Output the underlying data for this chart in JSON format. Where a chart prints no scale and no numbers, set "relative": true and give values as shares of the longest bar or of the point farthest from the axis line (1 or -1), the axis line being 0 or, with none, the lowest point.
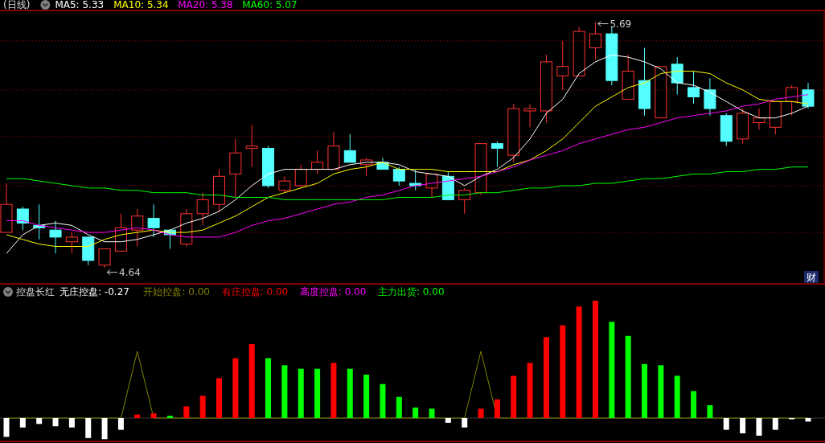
{
  "chart_data": [
    {
      "type": "candlestick",
      "title": "(日线)",
      "categories": [
        null,
        null,
        null,
        null,
        null,
        null,
        null,
        null,
        null,
        null,
        null,
        null,
        null,
        null,
        null,
        null,
        null,
        null,
        null,
        null,
        null,
        null,
        null,
        null,
        null,
        null,
        null,
        null,
        null,
        null,
        null,
        null,
        null,
        null,
        null,
        null,
        null,
        null,
        null,
        null,
        null,
        null,
        null,
        null,
        null,
        null,
        null,
        null,
        null,
        null
      ],
      "ohlc": [
        [
          4.79,
          5.0,
          4.79,
          4.91
        ],
        [
          4.89,
          4.9,
          4.8,
          4.83
        ],
        [
          4.82,
          4.91,
          4.76,
          4.81
        ],
        [
          4.8,
          4.84,
          4.7,
          4.77
        ],
        [
          4.75,
          4.79,
          4.7,
          4.77
        ],
        [
          4.77,
          4.77,
          4.65,
          4.67
        ],
        [
          4.65,
          4.72,
          4.64,
          4.72
        ],
        [
          4.71,
          4.87,
          4.71,
          4.81
        ],
        [
          4.8,
          4.89,
          4.73,
          4.86
        ],
        [
          4.85,
          4.91,
          4.77,
          4.81
        ],
        [
          4.8,
          4.8,
          4.72,
          4.78
        ],
        [
          4.74,
          4.89,
          4.73,
          4.87
        ],
        [
          4.87,
          4.96,
          4.82,
          4.93
        ],
        [
          4.91,
          5.06,
          4.88,
          5.03
        ],
        [
          5.04,
          5.19,
          4.94,
          5.13
        ],
        [
          5.15,
          5.25,
          5.07,
          5.16
        ],
        [
          5.15,
          5.16,
          4.98,
          4.99
        ],
        [
          4.97,
          5.03,
          4.96,
          5.01
        ],
        [
          4.99,
          5.08,
          4.98,
          5.06
        ],
        [
          5.06,
          5.14,
          5.04,
          5.09
        ],
        [
          5.06,
          5.22,
          5.06,
          5.16
        ],
        [
          5.14,
          5.21,
          5.09,
          5.09
        ],
        [
          5.08,
          5.11,
          5.03,
          5.1
        ],
        [
          5.09,
          5.11,
          5.06,
          5.06
        ],
        [
          5.06,
          5.07,
          4.99,
          5.01
        ],
        [
          5.0,
          5.06,
          4.97,
          4.99
        ],
        [
          4.98,
          5.04,
          4.94,
          5.04
        ],
        [
          5.03,
          5.05,
          4.93,
          4.93
        ],
        [
          4.93,
          4.98,
          4.87,
          4.97
        ],
        [
          4.96,
          5.17,
          4.95,
          5.17
        ],
        [
          5.17,
          5.18,
          5.07,
          5.15
        ],
        [
          5.12,
          5.34,
          5.09,
          5.32
        ],
        [
          5.31,
          5.34,
          5.24,
          5.32
        ],
        [
          5.31,
          5.55,
          5.26,
          5.52
        ],
        [
          5.46,
          5.61,
          5.4,
          5.5
        ],
        [
          5.46,
          5.67,
          5.46,
          5.65
        ],
        [
          5.58,
          5.69,
          5.53,
          5.64
        ],
        [
          5.64,
          5.67,
          5.42,
          5.44
        ],
        [
          5.36,
          5.55,
          5.36,
          5.48
        ],
        [
          5.44,
          5.58,
          5.29,
          5.32
        ],
        [
          5.28,
          5.5,
          5.28,
          5.5
        ],
        [
          5.51,
          5.54,
          5.38,
          5.43
        ],
        [
          5.41,
          5.48,
          5.34,
          5.37
        ],
        [
          5.4,
          5.45,
          5.29,
          5.32
        ],
        [
          5.29,
          5.3,
          5.16,
          5.18
        ],
        [
          5.19,
          5.32,
          5.17,
          5.3
        ],
        [
          5.26,
          5.32,
          5.23,
          5.28
        ],
        [
          5.24,
          5.35,
          5.21,
          5.35
        ],
        [
          5.35,
          5.42,
          5.29,
          5.41
        ],
        [
          5.4,
          5.43,
          5.32,
          5.33
        ]
      ],
      "colors": [
        "#ff3232",
        "#54ffff",
        "#54ffff",
        "#54ffff",
        "#ff3232",
        "#54ffff",
        "#ff3232",
        "#ff3232",
        "#ff3232",
        "#54ffff",
        "#54ffff",
        "#ff3232",
        "#ff3232",
        "#ff3232",
        "#ff3232",
        "#ff3232",
        "#54ffff",
        "#ff3232",
        "#ff3232",
        "#ff3232",
        "#ff3232",
        "#54ffff",
        "#ff3232",
        "#54ffff",
        "#54ffff",
        "#54ffff",
        "#ff3232",
        "#54ffff",
        "#ff3232",
        "#ff3232",
        "#54ffff",
        "#ff3232",
        "#ff3232",
        "#ff3232",
        "#ff3232",
        "#ff3232",
        "#ff3232",
        "#54ffff",
        "#ff3232",
        "#54ffff",
        "#ff3232",
        "#54ffff",
        "#54ffff",
        "#54ffff",
        "#54ffff",
        "#ff3232",
        "#ff3232",
        "#ff3232",
        "#ff3232",
        "#54ffff"
      ],
      "series": [
        {
          "name": "MA5: 5.33",
          "type": "line",
          "color": "#ffffff",
          "values": [
            4.7,
            4.78,
            4.82,
            4.83,
            4.82,
            4.78,
            4.75,
            4.75,
            4.76,
            4.78,
            4.8,
            4.83,
            4.85,
            4.88,
            4.93,
            4.99,
            5.04,
            5.06,
            5.06,
            5.06,
            5.06,
            5.08,
            5.09,
            5.09,
            5.08,
            5.05,
            5.04,
            5.03,
            4.99,
            5.03,
            5.06,
            5.11,
            5.19,
            5.3,
            5.36,
            5.47,
            5.52,
            5.55,
            5.54,
            5.52,
            5.49,
            5.43,
            5.42,
            5.39,
            5.35,
            5.31,
            5.28,
            5.28,
            5.3,
            5.33
          ]
        },
        {
          "name": "MA10: 5.34",
          "type": "line",
          "color": "#ffff00",
          "values": [
            4.78,
            4.76,
            4.74,
            4.73,
            4.73,
            4.73,
            4.76,
            4.78,
            4.79,
            4.8,
            4.79,
            4.79,
            4.8,
            4.83,
            4.86,
            4.9,
            4.94,
            4.96,
            4.98,
            5.0,
            5.04,
            5.06,
            5.07,
            5.09,
            5.06,
            5.06,
            5.06,
            5.05,
            5.05,
            5.05,
            5.05,
            5.08,
            5.1,
            5.14,
            5.19,
            5.26,
            5.33,
            5.37,
            5.41,
            5.43,
            5.47,
            5.48,
            5.48,
            5.47,
            5.43,
            5.4,
            5.36,
            5.35,
            5.35,
            5.34
          ]
        },
        {
          "name": "MA20: 5.38",
          "type": "line",
          "color": "#ff00ff",
          "values": [
            4.84,
            4.84,
            4.82,
            4.81,
            4.8,
            4.79,
            4.79,
            4.8,
            4.81,
            4.8,
            4.78,
            4.77,
            4.77,
            4.77,
            4.79,
            4.82,
            4.84,
            4.85,
            4.87,
            4.89,
            4.91,
            4.92,
            4.94,
            4.95,
            4.97,
            4.99,
            5.0,
            5.01,
            5.02,
            5.03,
            5.05,
            5.07,
            5.1,
            5.12,
            5.14,
            5.17,
            5.19,
            5.21,
            5.23,
            5.24,
            5.26,
            5.28,
            5.29,
            5.3,
            5.31,
            5.33,
            5.34,
            5.36,
            5.37,
            5.38
          ]
        },
        {
          "name": "MA60: 5.07",
          "type": "line",
          "color": "#00ff00",
          "values": [
            5.02,
            5.02,
            5.01,
            5.0,
            4.99,
            4.98,
            4.98,
            4.97,
            4.97,
            4.96,
            4.96,
            4.96,
            4.95,
            4.95,
            4.94,
            4.94,
            4.94,
            4.93,
            4.93,
            4.93,
            4.93,
            4.93,
            4.93,
            4.93,
            4.94,
            4.94,
            4.94,
            4.95,
            4.95,
            4.96,
            4.96,
            4.97,
            4.98,
            4.98,
            4.99,
            4.99,
            5.0,
            5.0,
            5.01,
            5.02,
            5.02,
            5.03,
            5.04,
            5.04,
            5.05,
            5.05,
            5.06,
            5.06,
            5.07,
            5.07
          ]
        }
      ],
      "ylim": [
        4.57,
        5.74
      ],
      "yticks": [
        {
          "value": 5.61,
          "label": null
        },
        {
          "value": 5.4,
          "label": null
        },
        {
          "value": 5.2,
          "label": null
        },
        {
          "value": 4.99,
          "label": null
        },
        {
          "value": 4.79,
          "label": null
        }
      ],
      "grid": "y",
      "legend": "top left",
      "annotations": [
        "5.69",
        "4.64",
        "财"
      ]
    },
    {
      "type": "bar",
      "title": "控盘长红",
      "relative": true,
      "categories": [
        null,
        null,
        null,
        null,
        null,
        null,
        null,
        null,
        null,
        null,
        null,
        null,
        null,
        null,
        null,
        null,
        null,
        null,
        null,
        null,
        null,
        null,
        null,
        null,
        null,
        null,
        null,
        null,
        null,
        null,
        null,
        null,
        null,
        null,
        null,
        null,
        null,
        null,
        null,
        null,
        null,
        null,
        null,
        null,
        null,
        null,
        null,
        null,
        null,
        null
      ],
      "values": [
        -0.16,
        -0.08,
        -0.05,
        -0.07,
        -0.08,
        -0.17,
        -0.18,
        -0.1,
        0.03,
        0.04,
        0.02,
        0.1,
        0.19,
        0.34,
        0.51,
        0.63,
        0.51,
        0.45,
        0.42,
        0.42,
        0.47,
        0.42,
        0.37,
        0.29,
        0.18,
        0.09,
        0.08,
        -0.04,
        -0.08,
        0.08,
        0.16,
        0.36,
        0.47,
        0.69,
        0.79,
        0.95,
        1,
        0.82,
        0.7,
        0.46,
        0.45,
        0.36,
        0.23,
        0.11,
        -0.1,
        -0.13,
        -0.15,
        -0.1,
        -0.01,
        -0.03
      ],
      "colors": [
        "#ffffff",
        "#ffffff",
        "#ffffff",
        "#ffffff",
        "#ffffff",
        "#ffffff",
        "#ffffff",
        "#ffffff",
        "#ff0000",
        "#ff0000",
        "#00ff00",
        "#ff0000",
        "#ff0000",
        "#ff0000",
        "#ff0000",
        "#ff0000",
        "#00ff00",
        "#00ff00",
        "#00ff00",
        "#00ff00",
        "#ff0000",
        "#00ff00",
        "#00ff00",
        "#00ff00",
        "#00ff00",
        "#00ff00",
        "#00ff00",
        "#ffffff",
        "#ffffff",
        "#ff0000",
        "#ff0000",
        "#ff0000",
        "#ff0000",
        "#ff0000",
        "#ff0000",
        "#ff0000",
        "#ff0000",
        "#00ff00",
        "#00ff00",
        "#00ff00",
        "#00ff00",
        "#00ff00",
        "#00ff00",
        "#00ff00",
        "#ffffff",
        "#ffffff",
        "#ffffff",
        "#ffffff",
        "#ffffff",
        "#ffffff"
      ],
      "annotations": [
        "无庄控盘: -0.27",
        "有庄控盘: 0.00",
        "高度控盘: 0.00",
        "主力出货: 0.00"
      ]
    },
    {
      "type": "line",
      "relative": true,
      "legend": "top left",
      "categories": [
        null,
        null,
        null,
        null,
        null,
        null,
        null,
        null,
        null,
        null,
        null,
        null,
        null,
        null,
        null,
        null,
        null,
        null,
        null,
        null,
        null,
        null,
        null,
        null,
        null,
        null,
        null,
        null,
        null,
        null,
        null,
        null,
        null,
        null,
        null,
        null,
        null,
        null,
        null,
        null,
        null,
        null,
        null,
        null,
        null,
        null,
        null,
        null,
        null,
        null
      ],
      "series": [
        {
          "name": "开始控盘: 0.00",
          "color": "#808000",
          "values": [
            0,
            0,
            0,
            0,
            0,
            0,
            0,
            0,
            1,
            0,
            0,
            0,
            0,
            0,
            0,
            0,
            0,
            0,
            0,
            0,
            0,
            0,
            0,
            0,
            0,
            0,
            0,
            0,
            0,
            1,
            0,
            0,
            0,
            0,
            0,
            0,
            0,
            0,
            0,
            0,
            0,
            0,
            0,
            0,
            0,
            0,
            0,
            0,
            0,
            0
          ]
        }
      ]
    }
  ]
}
